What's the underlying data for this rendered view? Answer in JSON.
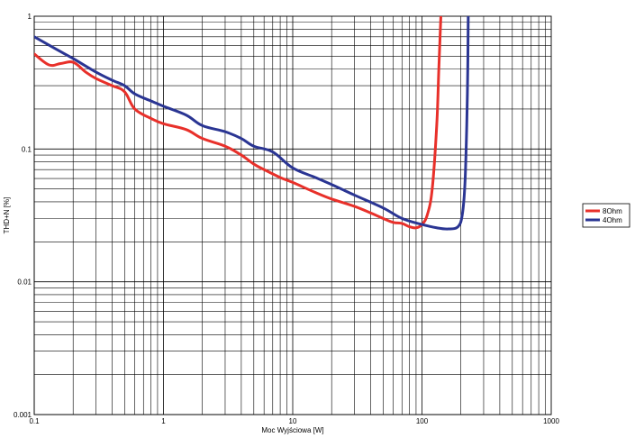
{
  "chart_data": {
    "type": "line",
    "xlabel": "Moc Wyjściowa [W]",
    "ylabel": "THD+N [%]",
    "x_scale": "log",
    "y_scale": "log",
    "xlim": [
      0.1,
      1000
    ],
    "ylim": [
      0.001,
      1
    ],
    "grid": true,
    "legend_position": "right",
    "x_ticks": [
      "0.1",
      "1",
      "10",
      "100",
      "1000"
    ],
    "y_ticks": [
      "1",
      "0.1",
      "0.01",
      "0.001"
    ],
    "series": [
      {
        "name": "8Ohm",
        "color": "#e8302a",
        "points": [
          [
            0.1,
            0.52
          ],
          [
            0.13,
            0.43
          ],
          [
            0.16,
            0.44
          ],
          [
            0.2,
            0.45
          ],
          [
            0.25,
            0.38
          ],
          [
            0.3,
            0.34
          ],
          [
            0.4,
            0.3
          ],
          [
            0.5,
            0.27
          ],
          [
            0.6,
            0.2
          ],
          [
            0.8,
            0.17
          ],
          [
            1,
            0.155
          ],
          [
            1.5,
            0.14
          ],
          [
            2,
            0.12
          ],
          [
            3,
            0.105
          ],
          [
            4,
            0.09
          ],
          [
            5,
            0.077
          ],
          [
            6,
            0.07
          ],
          [
            8,
            0.061
          ],
          [
            10,
            0.056
          ],
          [
            15,
            0.047
          ],
          [
            20,
            0.042
          ],
          [
            30,
            0.037
          ],
          [
            40,
            0.033
          ],
          [
            50,
            0.03
          ],
          [
            60,
            0.028
          ],
          [
            70,
            0.0275
          ],
          [
            80,
            0.026
          ],
          [
            90,
            0.0255
          ],
          [
            100,
            0.027
          ],
          [
            110,
            0.032
          ],
          [
            120,
            0.05
          ],
          [
            130,
            0.15
          ],
          [
            135,
            0.4
          ],
          [
            140,
            1.0
          ]
        ]
      },
      {
        "name": "4Ohm",
        "color": "#2a3593",
        "points": [
          [
            0.1,
            0.7
          ],
          [
            0.15,
            0.56
          ],
          [
            0.2,
            0.48
          ],
          [
            0.3,
            0.38
          ],
          [
            0.4,
            0.33
          ],
          [
            0.5,
            0.3
          ],
          [
            0.6,
            0.26
          ],
          [
            0.8,
            0.23
          ],
          [
            1,
            0.21
          ],
          [
            1.5,
            0.18
          ],
          [
            2,
            0.15
          ],
          [
            3,
            0.135
          ],
          [
            4,
            0.12
          ],
          [
            5,
            0.105
          ],
          [
            7,
            0.095
          ],
          [
            10,
            0.072
          ],
          [
            15,
            0.061
          ],
          [
            20,
            0.054
          ],
          [
            30,
            0.045
          ],
          [
            50,
            0.036
          ],
          [
            70,
            0.03
          ],
          [
            100,
            0.027
          ],
          [
            130,
            0.0255
          ],
          [
            160,
            0.025
          ],
          [
            190,
            0.026
          ],
          [
            205,
            0.032
          ],
          [
            215,
            0.055
          ],
          [
            222,
            0.15
          ],
          [
            226,
            0.4
          ],
          [
            228,
            1.0
          ]
        ]
      }
    ]
  }
}
